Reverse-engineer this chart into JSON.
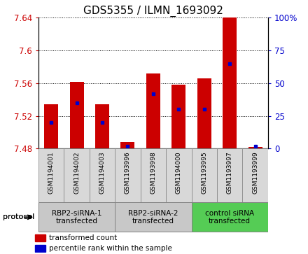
{
  "title": "GDS5355 / ILMN_1693092",
  "samples": [
    "GSM1194001",
    "GSM1194002",
    "GSM1194003",
    "GSM1193996",
    "GSM1193998",
    "GSM1194000",
    "GSM1193995",
    "GSM1193997",
    "GSM1193999"
  ],
  "transformed_counts": [
    7.534,
    7.562,
    7.534,
    7.488,
    7.572,
    7.558,
    7.566,
    7.64,
    7.482
  ],
  "percentile_ranks": [
    20,
    35,
    20,
    2,
    42,
    30,
    30,
    65,
    2
  ],
  "ylim": [
    7.48,
    7.64
  ],
  "yticks": [
    7.48,
    7.52,
    7.56,
    7.6,
    7.64
  ],
  "y2lim": [
    0,
    100
  ],
  "y2ticks": [
    0,
    25,
    50,
    75,
    100
  ],
  "y2ticklabels": [
    "0",
    "25",
    "50",
    "75",
    "100%"
  ],
  "bar_color": "#cc0000",
  "dot_color": "#0000cc",
  "title_fontsize": 11,
  "groups": [
    {
      "label": "RBP2-siRNA-1\ntransfected",
      "start": 0,
      "end": 3,
      "color": "#c8c8c8"
    },
    {
      "label": "RBP2-siRNA-2\ntransfected",
      "start": 3,
      "end": 6,
      "color": "#c8c8c8"
    },
    {
      "label": "control siRNA\ntransfected",
      "start": 6,
      "end": 9,
      "color": "#55cc55"
    }
  ],
  "sample_box_color": "#d8d8d8",
  "protocol_label": "protocol",
  "legend_items": [
    {
      "color": "#cc0000",
      "label": "transformed count"
    },
    {
      "color": "#0000cc",
      "label": "percentile rank within the sample"
    }
  ],
  "bar_width": 0.55,
  "base_value": 7.48
}
